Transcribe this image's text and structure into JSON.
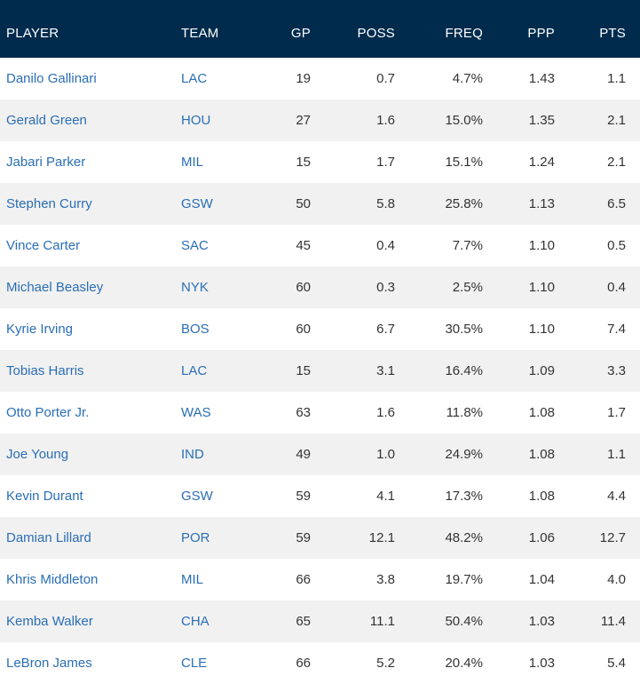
{
  "headers": {
    "player": "PLAYER",
    "team": "TEAM",
    "gp": "GP",
    "poss": "POSS",
    "freq": "FREQ",
    "ppp": "PPP",
    "pts": "PTS"
  },
  "rows": [
    {
      "player": "Danilo Gallinari",
      "team": "LAC",
      "gp": "19",
      "poss": "0.7",
      "freq": "4.7%",
      "ppp": "1.43",
      "pts": "1.1"
    },
    {
      "player": "Gerald Green",
      "team": "HOU",
      "gp": "27",
      "poss": "1.6",
      "freq": "15.0%",
      "ppp": "1.35",
      "pts": "2.1"
    },
    {
      "player": "Jabari Parker",
      "team": "MIL",
      "gp": "15",
      "poss": "1.7",
      "freq": "15.1%",
      "ppp": "1.24",
      "pts": "2.1"
    },
    {
      "player": "Stephen Curry",
      "team": "GSW",
      "gp": "50",
      "poss": "5.8",
      "freq": "25.8%",
      "ppp": "1.13",
      "pts": "6.5"
    },
    {
      "player": "Vince Carter",
      "team": "SAC",
      "gp": "45",
      "poss": "0.4",
      "freq": "7.7%",
      "ppp": "1.10",
      "pts": "0.5"
    },
    {
      "player": "Michael Beasley",
      "team": "NYK",
      "gp": "60",
      "poss": "0.3",
      "freq": "2.5%",
      "ppp": "1.10",
      "pts": "0.4"
    },
    {
      "player": "Kyrie Irving",
      "team": "BOS",
      "gp": "60",
      "poss": "6.7",
      "freq": "30.5%",
      "ppp": "1.10",
      "pts": "7.4"
    },
    {
      "player": "Tobias Harris",
      "team": "LAC",
      "gp": "15",
      "poss": "3.1",
      "freq": "16.4%",
      "ppp": "1.09",
      "pts": "3.3"
    },
    {
      "player": "Otto Porter Jr.",
      "team": "WAS",
      "gp": "63",
      "poss": "1.6",
      "freq": "11.8%",
      "ppp": "1.08",
      "pts": "1.7"
    },
    {
      "player": "Joe Young",
      "team": "IND",
      "gp": "49",
      "poss": "1.0",
      "freq": "24.9%",
      "ppp": "1.08",
      "pts": "1.1"
    },
    {
      "player": "Kevin Durant",
      "team": "GSW",
      "gp": "59",
      "poss": "4.1",
      "freq": "17.3%",
      "ppp": "1.08",
      "pts": "4.4"
    },
    {
      "player": "Damian Lillard",
      "team": "POR",
      "gp": "59",
      "poss": "12.1",
      "freq": "48.2%",
      "ppp": "1.06",
      "pts": "12.7"
    },
    {
      "player": "Khris Middleton",
      "team": "MIL",
      "gp": "66",
      "poss": "3.8",
      "freq": "19.7%",
      "ppp": "1.04",
      "pts": "4.0"
    },
    {
      "player": "Kemba Walker",
      "team": "CHA",
      "gp": "65",
      "poss": "11.1",
      "freq": "50.4%",
      "ppp": "1.03",
      "pts": "11.4"
    },
    {
      "player": "LeBron James",
      "team": "CLE",
      "gp": "66",
      "poss": "5.2",
      "freq": "20.4%",
      "ppp": "1.03",
      "pts": "5.4"
    }
  ],
  "colors": {
    "header_bg": "#002b4d",
    "link": "#2a6eb5",
    "stripe": "#f1f1f1"
  }
}
